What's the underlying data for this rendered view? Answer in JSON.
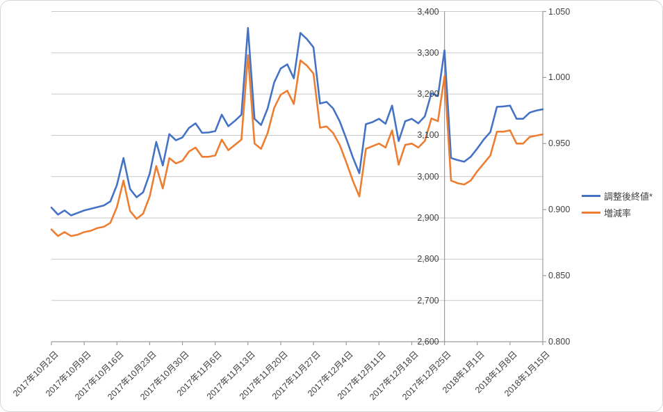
{
  "chart_data": {
    "type": "line",
    "title": "",
    "grid": true,
    "legend_position": "right-middle",
    "x_dates": [
      "2017/10/2",
      "2017/10/3",
      "2017/10/4",
      "2017/10/5",
      "2017/10/6",
      "2017/10/9",
      "2017/10/10",
      "2017/10/11",
      "2017/10/12",
      "2017/10/13",
      "2017/10/16",
      "2017/10/17",
      "2017/10/18",
      "2017/10/19",
      "2017/10/20",
      "2017/10/23",
      "2017/10/24",
      "2017/10/25",
      "2017/10/26",
      "2017/10/27",
      "2017/10/30",
      "2017/10/31",
      "2017/11/1",
      "2017/11/2",
      "2017/11/3",
      "2017/11/6",
      "2017/11/7",
      "2017/11/8",
      "2017/11/9",
      "2017/11/10",
      "2017/11/13",
      "2017/11/14",
      "2017/11/15",
      "2017/11/16",
      "2017/11/17",
      "2017/11/20",
      "2017/11/21",
      "2017/11/22",
      "2017/11/23",
      "2017/11/24",
      "2017/11/27",
      "2017/11/28",
      "2017/11/29",
      "2017/11/30",
      "2017/12/1",
      "2017/12/4",
      "2017/12/5",
      "2017/12/6",
      "2017/12/7",
      "2017/12/8",
      "2017/12/11",
      "2017/12/12",
      "2017/12/13",
      "2017/12/14",
      "2017/12/15",
      "2017/12/18",
      "2017/12/19",
      "2017/12/20",
      "2017/12/21",
      "2017/12/22",
      "2017/12/25",
      "2017/12/26",
      "2017/12/27",
      "2017/12/28",
      "2017/12/29",
      "2018/1/1",
      "2018/1/2",
      "2018/1/3",
      "2018/1/4",
      "2018/1/5",
      "2018/1/8",
      "2018/1/9",
      "2018/1/10",
      "2018/1/11",
      "2018/1/12",
      "2018/1/15"
    ],
    "x_tick_labels": [
      "2017年10月2日",
      "2017年10月9日",
      "2017年10月16日",
      "2017年10月23日",
      "2017年10月30日",
      "2017年11月6日",
      "2017年11月13日",
      "2017年11月20日",
      "2017年11月27日",
      "2017年12月4日",
      "2017年12月11日",
      "2017年12月18日",
      "2017年12月25日",
      "2018年1月1日",
      "2018年1月8日",
      "2018年1月15日"
    ],
    "x_tick_every": 5,
    "series": [
      {
        "name": "調整後終値*",
        "axis": "primary",
        "color": "#4472C4",
        "values": [
          2925,
          2908,
          2918,
          2906,
          2912,
          2918,
          2922,
          2926,
          2930,
          2940,
          2980,
          3045,
          2970,
          2950,
          2962,
          3007,
          3084,
          3027,
          3103,
          3088,
          3095,
          3118,
          3129,
          3106,
          3107,
          3110,
          3150,
          3122,
          3135,
          3150,
          3360,
          3140,
          3125,
          3165,
          3228,
          3262,
          3272,
          3238,
          3348,
          3333,
          3313,
          3177,
          3181,
          3165,
          3134,
          3092,
          3047,
          3008,
          3127,
          3132,
          3140,
          3128,
          3172,
          3086,
          3134,
          3140,
          3129,
          3146,
          3202,
          3195,
          3306,
          3045,
          3040,
          3036,
          3048,
          3068,
          3090,
          3108,
          3169,
          3170,
          3172,
          3140,
          3140,
          3155,
          3160,
          3163
        ]
      },
      {
        "name": "増減率",
        "axis": "secondary",
        "color": "#ED7D31",
        "values": [
          0.885,
          0.88,
          0.883,
          0.88,
          0.881,
          0.883,
          0.884,
          0.886,
          0.887,
          0.89,
          0.902,
          0.922,
          0.899,
          0.893,
          0.897,
          0.91,
          0.933,
          0.916,
          0.939,
          0.935,
          0.937,
          0.944,
          0.947,
          0.94,
          0.94,
          0.941,
          0.953,
          0.945,
          0.949,
          0.953,
          1.017,
          0.95,
          0.946,
          0.958,
          0.977,
          0.987,
          0.99,
          0.98,
          1.013,
          1.009,
          1.003,
          0.962,
          0.963,
          0.958,
          0.949,
          0.936,
          0.922,
          0.91,
          0.946,
          0.948,
          0.95,
          0.947,
          0.96,
          0.934,
          0.949,
          0.95,
          0.947,
          0.952,
          0.969,
          0.967,
          1.001,
          0.922,
          0.92,
          0.919,
          0.922,
          0.929,
          0.935,
          0.941,
          0.959,
          0.959,
          0.96,
          0.95,
          0.95,
          0.955,
          0.956,
          0.957
        ]
      }
    ],
    "primary_axis": {
      "min": 2600,
      "max": 3400,
      "step": 100,
      "tick_labels": [
        "2,600",
        "2,700",
        "2,800",
        "2,900",
        "3,000",
        "3,100",
        "3,200",
        "3,300",
        "3,400"
      ],
      "cross_index": 60
    },
    "secondary_axis": {
      "min": 0.8,
      "max": 1.05,
      "step": 0.05,
      "tick_labels": [
        "0.800",
        "0.850",
        "0.900",
        "0.950",
        "1.000",
        "1.050"
      ]
    }
  },
  "legend": {
    "items": [
      {
        "label": "調整後終値*",
        "color": "#4472C4"
      },
      {
        "label": "増減率",
        "color": "#ED7D31"
      }
    ]
  },
  "colors": {
    "series_blue": "#4472C4",
    "series_orange": "#ED7D31",
    "gridline": "#c9c9c9",
    "axis_line": "#9b9b9b",
    "label_text": "#404040",
    "frame_border": "#d7d7d7",
    "background": "#ffffff"
  }
}
